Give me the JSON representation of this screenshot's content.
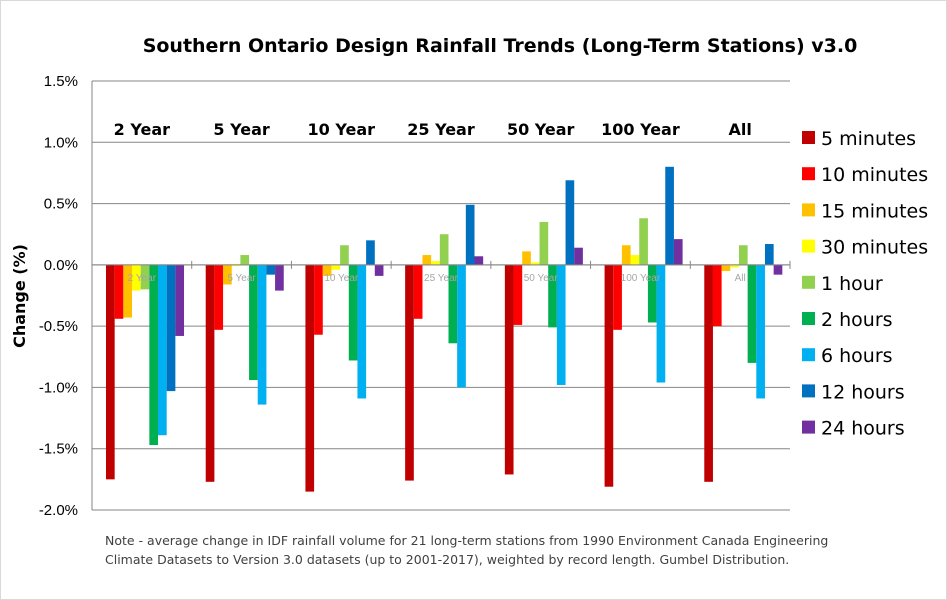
{
  "chart_data": {
    "type": "bar",
    "title": "Southern Ontario Design Rainfall Trends (Long-Term Stations) v3.0",
    "ylabel": "Change (%)",
    "xlabel": "",
    "ylim": [
      -2.0,
      1.5
    ],
    "yticks": [
      "1.5%",
      "1.0%",
      "0.5%",
      "0.0%",
      "-0.5%",
      "-1.0%",
      "-1.5%",
      "-2.0%"
    ],
    "ytick_values": [
      1.5,
      1.0,
      0.5,
      0.0,
      -0.5,
      -1.0,
      -1.5,
      -2.0
    ],
    "grid": true,
    "legend_position": "right",
    "categories": [
      "2 Year",
      "5 Year",
      "10 Year",
      "25 Year",
      "50 Year",
      "100 Year",
      "All"
    ],
    "series": [
      {
        "name": "5 minutes",
        "color": "#C00000",
        "values": [
          -1.75,
          -1.77,
          -1.85,
          -1.76,
          -1.71,
          -1.81,
          -1.77
        ]
      },
      {
        "name": "10 minutes",
        "color": "#FF0000",
        "values": [
          -0.44,
          -0.53,
          -0.57,
          -0.44,
          -0.49,
          -0.53,
          -0.5
        ]
      },
      {
        "name": "15 minutes",
        "color": "#FFC000",
        "values": [
          -0.43,
          -0.16,
          -0.09,
          0.08,
          0.11,
          0.16,
          -0.05
        ]
      },
      {
        "name": "30 minutes",
        "color": "#FFFF00",
        "values": [
          -0.21,
          -0.01,
          -0.04,
          0.03,
          0.02,
          0.08,
          -0.02
        ]
      },
      {
        "name": "1 hour",
        "color": "#92D050",
        "values": [
          -0.2,
          0.08,
          0.16,
          0.25,
          0.35,
          0.38,
          0.16
        ]
      },
      {
        "name": "2 hours",
        "color": "#00B050",
        "values": [
          -1.47,
          -0.94,
          -0.78,
          -0.64,
          -0.51,
          -0.47,
          -0.8
        ]
      },
      {
        "name": "6 hours",
        "color": "#00B0F0",
        "values": [
          -1.39,
          -1.14,
          -1.09,
          -1.0,
          -0.98,
          -0.96,
          -1.09
        ]
      },
      {
        "name": "12 hours",
        "color": "#0070C0",
        "values": [
          -1.03,
          -0.08,
          0.2,
          0.49,
          0.69,
          0.8,
          0.17
        ]
      },
      {
        "name": "24 hours",
        "color": "#7030A0",
        "values": [
          -0.58,
          -0.21,
          -0.09,
          0.07,
          0.14,
          0.21,
          -0.08
        ]
      }
    ],
    "note": [
      "Note - average change in IDF rainfall volume for 21 long-term stations from 1990 Environment Canada Engineering",
      "Climate Datasets to Version 3.0 datasets (up to 2001-2017),  weighted by record length. Gumbel Distribution."
    ]
  }
}
